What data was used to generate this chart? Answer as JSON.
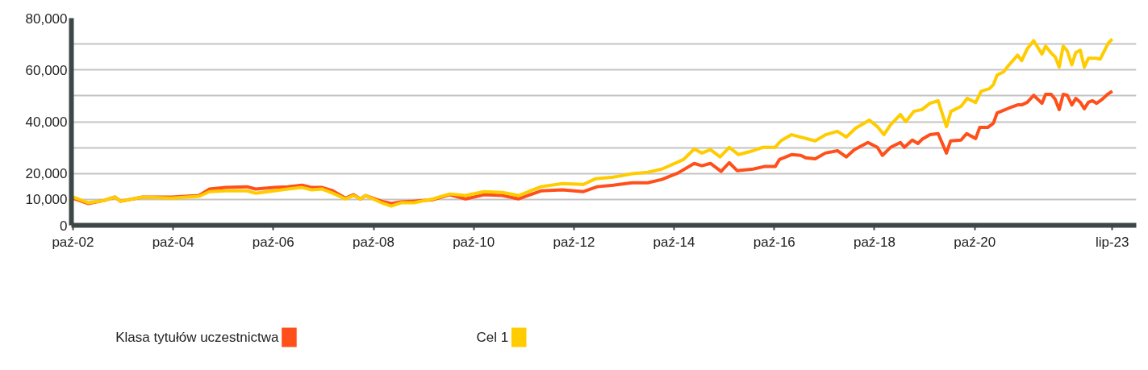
{
  "chart_data": {
    "type": "line",
    "xlim": [
      "2002-09-20",
      "2023-12-23"
    ],
    "ylim": [
      0,
      80000
    ],
    "xticks": [
      {
        "value": "2002-10-01",
        "label": "paź-02"
      },
      {
        "value": "2004-10-01",
        "label": "paź-04"
      },
      {
        "value": "2006-10-01",
        "label": "paź-06"
      },
      {
        "value": "2008-10-01",
        "label": "paź-08"
      },
      {
        "value": "2010-10-01",
        "label": "paź-10"
      },
      {
        "value": "2012-10-01",
        "label": "paź-12"
      },
      {
        "value": "2014-10-01",
        "label": "paź-14"
      },
      {
        "value": "2016-10-01",
        "label": "paź-16"
      },
      {
        "value": "2018-10-01",
        "label": "paź-18"
      },
      {
        "value": "2020-10-01",
        "label": "paź-20"
      },
      {
        "value": "2023-07-01",
        "label": "lip-23"
      }
    ],
    "yticks": [
      0,
      {
        "value": 10000,
        "label": "10,000"
      },
      {
        "value": 20000,
        "label": "20,000"
      },
      {
        "value": 30000,
        "label": null
      },
      {
        "value": 40000,
        "label": "40,000"
      },
      {
        "value": 50000,
        "label": null
      },
      {
        "value": 60000,
        "label": "60,000"
      },
      {
        "value": 70000,
        "label": null
      },
      {
        "value": 80000,
        "label": "80,000"
      }
    ],
    "grid": "y",
    "legend": "bottom",
    "line_style": "solid",
    "marker": "none",
    "series": [
      {
        "name": "Klasa tytułów uczestnictwa",
        "color": "#ff4f1a",
        "x": [
          "2002-10-01",
          "2003-01-22",
          "2003-05-17",
          "2003-08-03",
          "2003-09-13",
          "2004-02-21",
          "2004-09-20",
          "2005-04-08",
          "2005-06-23",
          "2005-10-19",
          "2006-03-23",
          "2006-05-25",
          "2006-10-08",
          "2007-01-15",
          "2007-04-29",
          "2007-07-08",
          "2007-09-23",
          "2007-12-09",
          "2008-03-09",
          "2008-05-07",
          "2008-06-27",
          "2008-08-03",
          "2008-11-28",
          "2009-02-07",
          "2009-04-19",
          "2009-07-22",
          "2009-12-09",
          "2010-04-08",
          "2010-08-03",
          "2010-12-16",
          "2011-04-29",
          "2011-08-25",
          "2012-02-03",
          "2012-07-08",
          "2012-12-09",
          "2013-03-20",
          "2013-07-15",
          "2013-11-28",
          "2014-03-23",
          "2014-07-04",
          "2014-10-29",
          "2015-02-25",
          "2015-04-22",
          "2015-06-23",
          "2015-09-09",
          "2015-11-07",
          "2016-01-04",
          "2016-04-29",
          "2016-07-19",
          "2016-10-08",
          "2016-11-07",
          "2017-02-03",
          "2017-04-11",
          "2017-05-17",
          "2017-07-26",
          "2017-10-08",
          "2018-01-04",
          "2018-03-09",
          "2018-05-07",
          "2018-08-14",
          "2018-10-22",
          "2018-11-28",
          "2019-01-26",
          "2019-04-08",
          "2019-05-07",
          "2019-07-04",
          "2019-08-14",
          "2019-09-13",
          "2019-11-10",
          "2020-01-08",
          "2020-03-09",
          "2020-04-08",
          "2020-06-23",
          "2020-08-03",
          "2020-10-08",
          "2020-11-07",
          "2021-01-04",
          "2021-02-14",
          "2021-03-13",
          "2021-04-29",
          "2021-06-09",
          "2021-08-10",
          "2021-09-09",
          "2021-10-19",
          "2021-12-05",
          "2022-02-03",
          "2022-03-02",
          "2022-04-11",
          "2022-05-10",
          "2022-06-09",
          "2022-07-08",
          "2022-08-07",
          "2022-09-09",
          "2022-10-08",
          "2022-11-10",
          "2022-12-09",
          "2023-01-08",
          "2023-02-07",
          "2023-03-09",
          "2023-04-19",
          "2023-05-28",
          "2023-07-01"
        ],
        "values": [
          10500,
          8400,
          9600,
          10900,
          9300,
          10900,
          10900,
          11500,
          14000,
          14600,
          14900,
          14000,
          14600,
          14900,
          15500,
          14600,
          14600,
          13300,
          10500,
          11800,
          10200,
          11500,
          9300,
          8400,
          9000,
          9300,
          9900,
          11800,
          10200,
          11800,
          11500,
          10200,
          13300,
          13700,
          13000,
          14900,
          15500,
          16400,
          16400,
          17700,
          20200,
          23900,
          23000,
          23900,
          20800,
          24200,
          21100,
          21700,
          22700,
          22700,
          25400,
          27300,
          27000,
          26100,
          25700,
          27900,
          28800,
          26400,
          29200,
          32000,
          30100,
          27000,
          30100,
          32000,
          30100,
          32900,
          31600,
          33200,
          35000,
          35400,
          27900,
          32600,
          32900,
          35400,
          33500,
          37800,
          37800,
          39400,
          43400,
          44400,
          45300,
          46500,
          46500,
          47500,
          50200,
          47100,
          50600,
          50600,
          48700,
          44700,
          50600,
          50200,
          46500,
          49000,
          47500,
          45000,
          47500,
          48100,
          47100,
          48700,
          50600,
          51800
        ]
      },
      {
        "name": "Cel 1",
        "color": "#ffcc00",
        "x": [
          "2002-10-01",
          "2003-01-22",
          "2003-05-17",
          "2003-08-03",
          "2003-09-13",
          "2004-02-21",
          "2004-09-20",
          "2005-04-08",
          "2005-06-23",
          "2005-10-19",
          "2006-03-23",
          "2006-05-25",
          "2006-10-08",
          "2007-01-15",
          "2007-04-29",
          "2007-07-08",
          "2007-09-23",
          "2007-12-09",
          "2008-03-09",
          "2008-05-07",
          "2008-06-27",
          "2008-08-03",
          "2008-11-28",
          "2009-02-07",
          "2009-04-19",
          "2009-07-22",
          "2009-12-09",
          "2010-04-08",
          "2010-08-03",
          "2010-12-16",
          "2011-04-29",
          "2011-08-25",
          "2012-02-03",
          "2012-07-08",
          "2012-12-09",
          "2013-03-09",
          "2013-07-15",
          "2013-11-28",
          "2014-03-23",
          "2014-07-04",
          "2014-12-09",
          "2015-02-25",
          "2015-04-22",
          "2015-06-23",
          "2015-09-02",
          "2015-11-07",
          "2016-01-15",
          "2016-04-29",
          "2016-07-08",
          "2016-10-08",
          "2016-11-17",
          "2017-02-03",
          "2017-07-26",
          "2017-10-11",
          "2018-01-04",
          "2018-03-09",
          "2018-05-17",
          "2018-08-25",
          "2018-10-22",
          "2018-12-09",
          "2019-01-26",
          "2019-04-08",
          "2019-05-17",
          "2019-07-15",
          "2019-09-13",
          "2019-11-10",
          "2020-01-08",
          "2020-03-09",
          "2020-04-11",
          "2020-06-23",
          "2020-08-07",
          "2020-10-08",
          "2020-11-17",
          "2021-01-15",
          "2021-02-14",
          "2021-03-13",
          "2021-04-29",
          "2021-06-09",
          "2021-08-10",
          "2021-09-09",
          "2021-10-19",
          "2021-12-05",
          "2022-02-03",
          "2022-03-02",
          "2022-04-19",
          "2022-05-10",
          "2022-06-09",
          "2022-07-08",
          "2022-08-07",
          "2022-09-09",
          "2022-10-08",
          "2022-11-10",
          "2022-12-09",
          "2023-01-08",
          "2023-03-02",
          "2023-04-04",
          "2023-06-02",
          "2023-07-01"
        ],
        "values": [
          10900,
          8700,
          9600,
          10900,
          9300,
          10900,
          10500,
          11200,
          13000,
          13300,
          13300,
          12400,
          13300,
          14000,
          14600,
          13700,
          14000,
          12400,
          10200,
          11500,
          10200,
          11500,
          8700,
          7400,
          8700,
          8700,
          10200,
          12100,
          11500,
          13000,
          12700,
          11500,
          14900,
          16100,
          15800,
          18000,
          18600,
          19900,
          20500,
          21700,
          25400,
          29500,
          27900,
          29200,
          26400,
          30100,
          27300,
          28800,
          30100,
          30100,
          32600,
          35000,
          32600,
          35000,
          36300,
          34100,
          37500,
          40600,
          38100,
          35000,
          38800,
          42800,
          40000,
          44000,
          44700,
          47100,
          48100,
          38100,
          44000,
          45900,
          49000,
          47400,
          51800,
          52700,
          54300,
          58000,
          59200,
          62000,
          65700,
          63600,
          68200,
          71300,
          66100,
          69200,
          66100,
          65100,
          61100,
          69200,
          67300,
          62000,
          66700,
          67600,
          61100,
          64500,
          64500,
          64200,
          70400,
          71900
        ]
      }
    ]
  }
}
